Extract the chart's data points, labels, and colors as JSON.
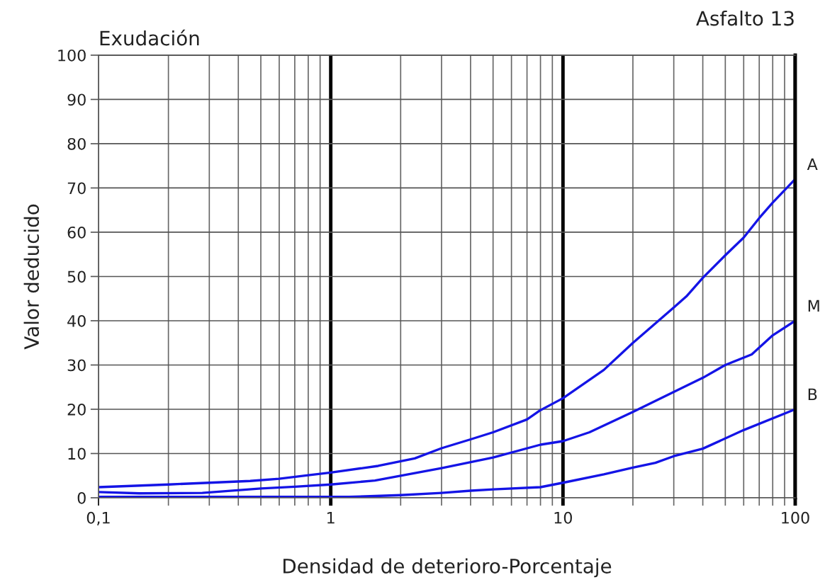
{
  "chart_data": {
    "type": "line",
    "title": "Exudación",
    "subtitle": "Asfalto 13",
    "xlabel": "Densidad de deterioro-Porcentaje",
    "ylabel": "Valor deducido",
    "log": "x",
    "xlim": [
      0.1,
      100
    ],
    "ylim": [
      0,
      100
    ],
    "xticks": [
      {
        "value": 0.1,
        "label": "0,1"
      },
      {
        "value": 0.2,
        "label": null
      },
      {
        "value": 0.3,
        "label": null
      },
      {
        "value": 0.4,
        "label": null
      },
      {
        "value": 0.5,
        "label": null
      },
      {
        "value": 0.6,
        "label": null
      },
      {
        "value": 0.7,
        "label": null
      },
      {
        "value": 0.8,
        "label": null
      },
      {
        "value": 0.9,
        "label": null
      },
      1,
      {
        "value": 2,
        "label": null
      },
      {
        "value": 3,
        "label": null
      },
      {
        "value": 4,
        "label": null
      },
      {
        "value": 5,
        "label": null
      },
      {
        "value": 6,
        "label": null
      },
      {
        "value": 7,
        "label": null
      },
      {
        "value": 8,
        "label": null
      },
      {
        "value": 9,
        "label": null
      },
      10,
      {
        "value": 20,
        "label": null
      },
      {
        "value": 30,
        "label": null
      },
      {
        "value": 40,
        "label": null
      },
      {
        "value": 50,
        "label": null
      },
      {
        "value": 60,
        "label": null
      },
      {
        "value": 70,
        "label": null
      },
      {
        "value": 80,
        "label": null
      },
      {
        "value": 90,
        "label": null
      },
      100
    ],
    "yticks": [
      0,
      10,
      20,
      30,
      40,
      50,
      60,
      70,
      80,
      90,
      100
    ],
    "grid": true,
    "series": [
      {
        "name": "A",
        "color": "#1414e6",
        "x": [
          0.1,
          0.2,
          0.3,
          0.45,
          0.6,
          0.8,
          1,
          1.6,
          2.3,
          3,
          4,
          5,
          7,
          8,
          10,
          15,
          20,
          30,
          34,
          40,
          50,
          60,
          70,
          80,
          100
        ],
        "values": [
          2.4,
          3.0,
          3.4,
          3.8,
          4.3,
          5.1,
          5.7,
          7.2,
          8.9,
          11.2,
          13.2,
          14.8,
          17.7,
          19.8,
          22.5,
          28.9,
          35.0,
          43.0,
          45.5,
          49.7,
          54.8,
          58.8,
          63.2,
          66.7,
          72
        ]
      },
      {
        "name": "M",
        "color": "#1414e6",
        "x": [
          0.1,
          0.15,
          0.28,
          0.5,
          0.7,
          1,
          1.55,
          3,
          5,
          8,
          10,
          13,
          20,
          30,
          40,
          50,
          65,
          80,
          100
        ],
        "values": [
          1.3,
          1.0,
          1.1,
          2.1,
          2.5,
          3.0,
          3.9,
          6.7,
          9.1,
          12.0,
          12.8,
          14.8,
          19.4,
          23.9,
          27.1,
          30.0,
          32.4,
          36.7,
          40
        ]
      },
      {
        "name": "B",
        "color": "#1414e6",
        "x": [
          0.1,
          1.2,
          2,
          3,
          4,
          5,
          8,
          10,
          15,
          20,
          25,
          30,
          40,
          60,
          100
        ],
        "values": [
          0.2,
          0.2,
          0.6,
          1.1,
          1.6,
          1.9,
          2.4,
          3.4,
          5.3,
          6.8,
          7.9,
          9.4,
          11.1,
          15.3,
          20
        ]
      }
    ]
  }
}
